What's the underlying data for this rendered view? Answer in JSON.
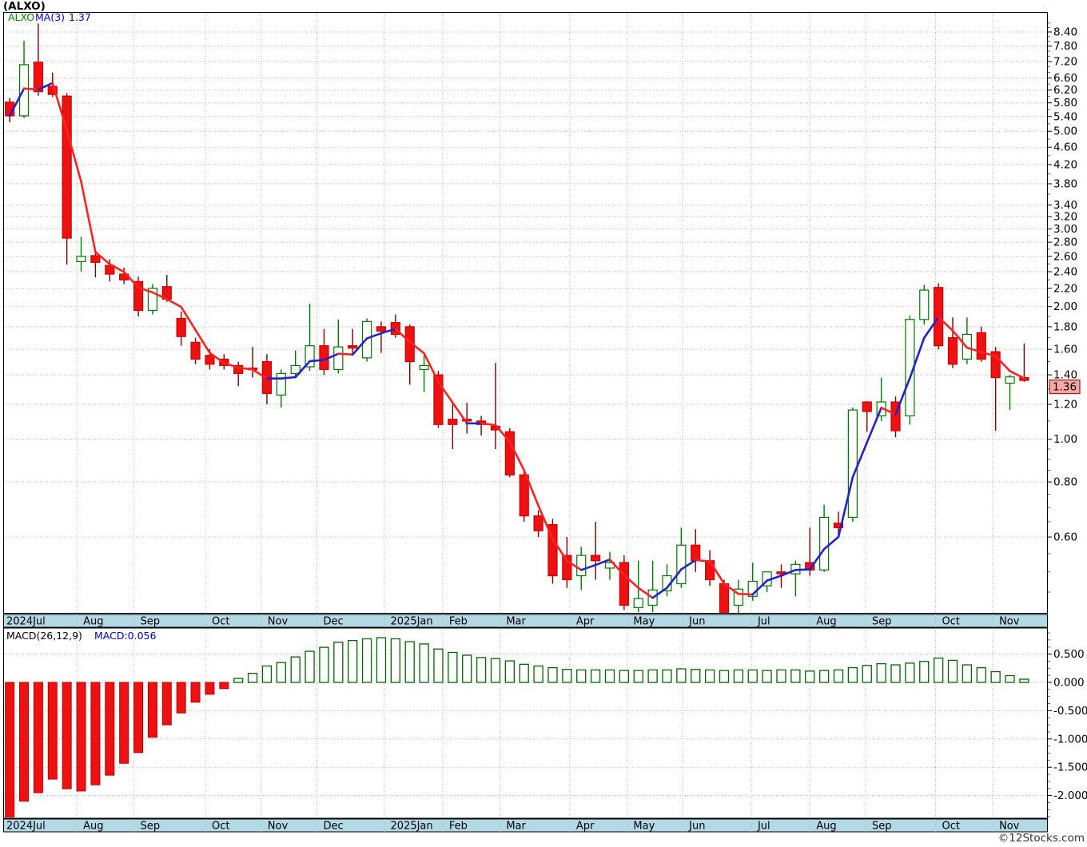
{
  "header": {
    "title": "(ALXO)"
  },
  "price_panel": {
    "legend": {
      "symbol": "ALXO",
      "ma_label": "MA(3)",
      "ma_value": "1.37"
    },
    "last_price_tag": "1.36",
    "y_axis": {
      "tick_values": [
        8.4,
        7.8,
        7.2,
        6.6,
        6.2,
        5.8,
        5.4,
        5.0,
        4.6,
        4.2,
        3.8,
        3.4,
        3.2,
        3.0,
        2.8,
        2.6,
        2.4,
        2.2,
        2.0,
        1.8,
        1.6,
        1.4,
        1.2,
        1.0,
        0.8,
        0.6
      ],
      "tick_labels": [
        "8.40",
        "7.80",
        "7.20",
        "6.60",
        "6.20",
        "5.80",
        "5.40",
        "5.00",
        "4.60",
        "4.20",
        "3.80",
        "3.40",
        "3.20",
        "3.00",
        "2.80",
        "2.60",
        "2.40",
        "2.20",
        "2.00",
        "1.80",
        "1.60",
        "1.40",
        "1.20",
        "1.00",
        "0.80",
        "0.60"
      ]
    }
  },
  "macd_panel": {
    "legend_left": "MACD(26,12,9)",
    "legend_right": "MACD:0.056",
    "y_axis": {
      "tick_values": [
        0.5,
        0.0,
        -0.5,
        -1.0,
        -1.5,
        -2.0
      ],
      "tick_labels": [
        "0.500",
        "0.000",
        "-0.500",
        "-1.000",
        "-1.500",
        "-2.000"
      ]
    }
  },
  "x_axis": {
    "month_labels": [
      "2024Jul",
      "Aug",
      "Sep",
      "Oct",
      "Nov",
      "Dec",
      "2025Jan",
      "Feb",
      "Mar",
      "Apr",
      "May",
      "Jun",
      "Jul",
      "Aug",
      "Sep",
      "Oct",
      "Nov"
    ],
    "month_boundaries": [
      0,
      5.1,
      9.1,
      14.1,
      18.0,
      21.9,
      26.6,
      30.7,
      34.7,
      39.6,
      43.6,
      47.5,
      52.3,
      56.4,
      60.3,
      65.2,
      69.2,
      73
    ]
  },
  "footer": {
    "credit": "©12Stocks.com"
  },
  "colors": {
    "up": "#007700",
    "up_fill": "#ffffff",
    "down": "#cc0000",
    "down_fill": "#ee1111",
    "down_wick": "#7a0000",
    "ma_up": "#2222cc",
    "ma_down": "#ff2222",
    "grid": "#b8b8b8",
    "frame": "#000000",
    "axis_text": "#000000",
    "strip_bg": "#b3d9e6",
    "legend_symbol": "#008800",
    "legend_blue": "#0000cc",
    "tag_bg": "#f9a8a8",
    "tag_border": "#aa2222",
    "credit": "#333333",
    "macd_pos": "#006600",
    "macd_neg_fill": "#ee1111",
    "macd_neg_stroke": "#bb0000"
  },
  "chart_data": {
    "type": "candlestick_with_macd",
    "symbol": "ALXO",
    "interval": "weekly",
    "price_scale": "log",
    "ma_period": 3,
    "last_close": 1.36,
    "candles": {
      "open": [
        5.82,
        5.42,
        7.17,
        6.32,
        6.01,
        2.53,
        2.61,
        2.48,
        2.37,
        2.28,
        1.96,
        2.22,
        1.88,
        1.66,
        1.55,
        1.52,
        1.47,
        1.45,
        1.5,
        1.26,
        1.41,
        1.46,
        1.63,
        1.44,
        1.63,
        1.53,
        1.8,
        1.84,
        1.8,
        1.44,
        1.4,
        1.11,
        1.11,
        1.1,
        1.07,
        1.04,
        0.83,
        0.67,
        0.64,
        0.545,
        0.49,
        0.545,
        0.51,
        0.525,
        0.415,
        0.42,
        0.453,
        0.47,
        0.575,
        0.53,
        0.47,
        0.42,
        0.44,
        0.465,
        0.5,
        0.495,
        0.525,
        0.505,
        0.645,
        0.665,
        1.215,
        1.13,
        1.215,
        1.13,
        1.87,
        2.21,
        1.7,
        1.52,
        1.745,
        1.58,
        1.34,
        1.38
      ],
      "high": [
        5.95,
        8.02,
        8.78,
        6.79,
        6.1,
        2.88,
        2.68,
        2.56,
        2.45,
        2.34,
        2.25,
        2.36,
        1.95,
        1.7,
        1.6,
        1.56,
        1.5,
        1.62,
        1.56,
        1.44,
        1.59,
        2.03,
        1.78,
        1.87,
        1.78,
        1.88,
        1.85,
        1.92,
        1.82,
        1.55,
        1.43,
        1.21,
        1.21,
        1.13,
        1.49,
        1.06,
        0.85,
        0.69,
        0.66,
        0.6,
        0.57,
        0.65,
        0.555,
        0.545,
        0.53,
        0.53,
        0.52,
        0.63,
        0.625,
        0.56,
        0.48,
        0.48,
        0.525,
        0.5,
        0.52,
        0.53,
        0.63,
        0.71,
        0.685,
        1.18,
        1.22,
        1.38,
        1.25,
        1.91,
        2.24,
        2.26,
        1.89,
        1.89,
        1.8,
        1.62,
        1.4,
        1.65
      ],
      "low": [
        5.24,
        5.36,
        6.02,
        5.98,
        2.49,
        2.4,
        2.33,
        2.28,
        2.25,
        1.9,
        1.92,
        2.05,
        1.63,
        1.48,
        1.44,
        1.44,
        1.32,
        1.38,
        1.2,
        1.18,
        1.38,
        1.43,
        1.4,
        1.41,
        1.56,
        1.5,
        1.57,
        1.7,
        1.33,
        1.28,
        1.06,
        0.95,
        1.03,
        1.02,
        0.95,
        0.82,
        0.65,
        0.6,
        0.47,
        0.46,
        0.455,
        0.48,
        0.48,
        0.41,
        0.405,
        0.405,
        0.44,
        0.46,
        0.5,
        0.465,
        0.395,
        0.4,
        0.43,
        0.45,
        0.46,
        0.44,
        0.49,
        0.5,
        0.6,
        0.65,
        1.04,
        1.1,
        1.01,
        1.08,
        1.82,
        1.6,
        1.45,
        1.48,
        1.5,
        1.045,
        1.165,
        1.35
      ],
      "close": [
        5.42,
        7.08,
        6.15,
        6.06,
        2.86,
        2.6,
        2.52,
        2.37,
        2.3,
        1.96,
        2.2,
        2.08,
        1.71,
        1.52,
        1.48,
        1.47,
        1.41,
        1.44,
        1.27,
        1.41,
        1.47,
        1.63,
        1.44,
        1.62,
        1.61,
        1.85,
        1.76,
        1.73,
        1.5,
        1.47,
        1.08,
        1.08,
        1.1,
        1.08,
        1.05,
        0.83,
        0.67,
        0.62,
        0.49,
        0.48,
        0.545,
        0.53,
        0.525,
        0.42,
        0.435,
        0.455,
        0.49,
        0.575,
        0.53,
        0.48,
        0.4,
        0.457,
        0.476,
        0.5,
        0.495,
        0.52,
        0.505,
        0.665,
        0.63,
        1.165,
        1.156,
        1.215,
        1.045,
        1.87,
        2.18,
        1.63,
        1.48,
        1.73,
        1.52,
        1.38,
        1.385,
        1.36
      ]
    },
    "macd": [
      -2.39,
      -2.1,
      -1.95,
      -1.71,
      -1.88,
      -1.92,
      -1.81,
      -1.64,
      -1.43,
      -1.24,
      -0.97,
      -0.75,
      -0.54,
      -0.35,
      -0.21,
      -0.11,
      0.07,
      0.16,
      0.29,
      0.35,
      0.45,
      0.55,
      0.62,
      0.71,
      0.74,
      0.77,
      0.79,
      0.77,
      0.72,
      0.68,
      0.59,
      0.53,
      0.48,
      0.44,
      0.42,
      0.38,
      0.32,
      0.29,
      0.26,
      0.23,
      0.22,
      0.22,
      0.22,
      0.21,
      0.21,
      0.22,
      0.22,
      0.24,
      0.23,
      0.22,
      0.21,
      0.22,
      0.22,
      0.21,
      0.22,
      0.22,
      0.2,
      0.21,
      0.22,
      0.26,
      0.3,
      0.33,
      0.31,
      0.34,
      0.37,
      0.43,
      0.39,
      0.31,
      0.26,
      0.19,
      0.12,
      0.056
    ]
  }
}
